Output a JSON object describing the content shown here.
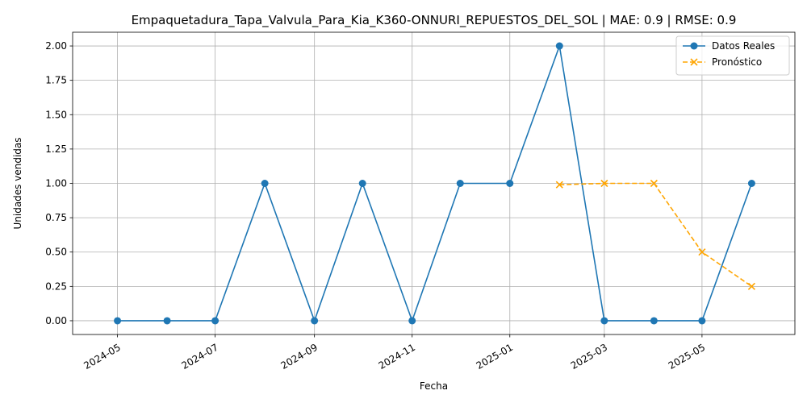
{
  "chart_data": {
    "type": "line",
    "title": "Empaquetadura_Tapa_Valvula_Para_Kia_K360-ONNURI_REPUESTOS_DEL_SOL | MAE: 0.9 | RMSE: 0.9",
    "xlabel": "Fecha",
    "ylabel": "Unidades vendidas",
    "ylim": [
      -0.1,
      2.1
    ],
    "xlim": [
      "2024-04-03",
      "2025-06-28"
    ],
    "yticks": [
      0.0,
      0.25,
      0.5,
      0.75,
      1.0,
      1.25,
      1.5,
      1.75,
      2.0
    ],
    "ytick_labels": [
      "0.00",
      "0.25",
      "0.50",
      "0.75",
      "1.00",
      "1.25",
      "1.50",
      "1.75",
      "2.00"
    ],
    "xticks": [
      "2024-05-01",
      "2024-07-01",
      "2024-09-01",
      "2024-11-01",
      "2025-01-01",
      "2025-03-01",
      "2025-05-01"
    ],
    "xtick_labels": [
      "2024-05",
      "2024-07",
      "2024-09",
      "2024-11",
      "2025-01",
      "2025-03",
      "2025-05"
    ],
    "grid": true,
    "legend_position": "top-right",
    "series": [
      {
        "name": "Datos Reales",
        "color": "#1f77b4",
        "marker": "circle",
        "linestyle": "solid",
        "points": [
          {
            "x": "2024-05-01",
            "y": 0
          },
          {
            "x": "2024-06-01",
            "y": 0
          },
          {
            "x": "2024-07-01",
            "y": 0
          },
          {
            "x": "2024-08-01",
            "y": 1
          },
          {
            "x": "2024-09-01",
            "y": 0
          },
          {
            "x": "2024-10-01",
            "y": 1
          },
          {
            "x": "2024-11-01",
            "y": 0
          },
          {
            "x": "2024-12-01",
            "y": 1
          },
          {
            "x": "2025-01-01",
            "y": 1
          },
          {
            "x": "2025-02-01",
            "y": 2
          },
          {
            "x": "2025-03-01",
            "y": 0
          },
          {
            "x": "2025-04-01",
            "y": 0
          },
          {
            "x": "2025-05-01",
            "y": 0
          },
          {
            "x": "2025-06-01",
            "y": 1
          }
        ]
      },
      {
        "name": "Pronóstico",
        "color": "#ffa500",
        "marker": "x",
        "linestyle": "dashed",
        "points": [
          {
            "x": "2025-02-01",
            "y": 0.99
          },
          {
            "x": "2025-03-01",
            "y": 1.0
          },
          {
            "x": "2025-04-01",
            "y": 1.0
          },
          {
            "x": "2025-05-01",
            "y": 0.5
          },
          {
            "x": "2025-06-01",
            "y": 0.25
          }
        ]
      }
    ]
  }
}
